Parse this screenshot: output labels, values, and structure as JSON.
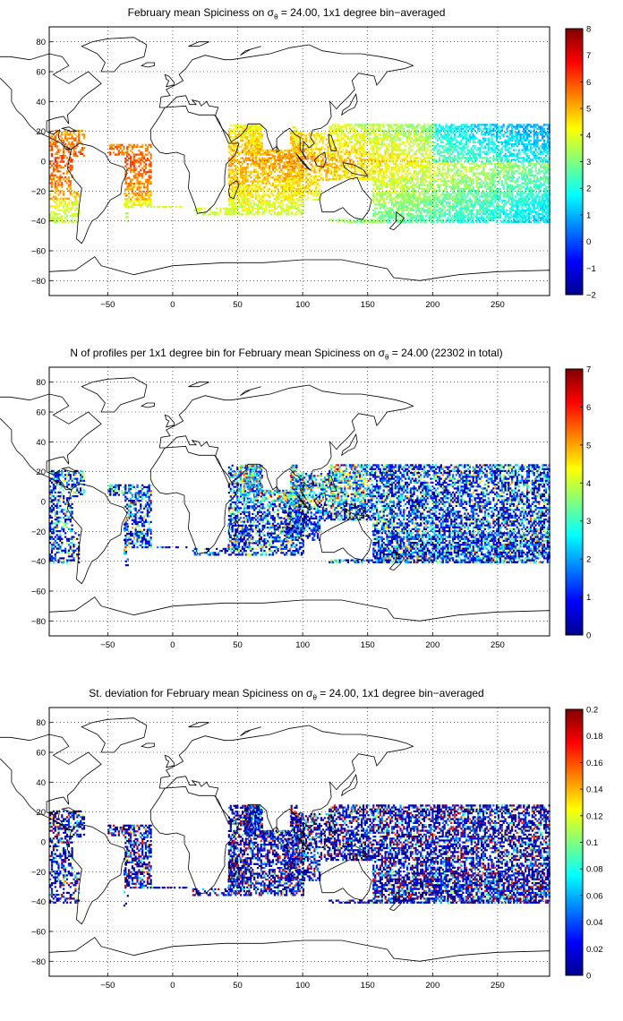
{
  "panels": [
    {
      "title_prefix": "February mean Spiciness on σ",
      "title_sub": "θ",
      "title_suffix": " = 24.00, 1x1 degree bin−averaged",
      "xticks": [
        "−50",
        "0",
        "50",
        "100",
        "150",
        "200",
        "250"
      ],
      "yticks": [
        "80",
        "60",
        "40",
        "20",
        "0",
        "−20",
        "−40",
        "−60",
        "−80"
      ],
      "colorbar_ticks": [
        "8",
        "7",
        "6",
        "5",
        "4",
        "3",
        "2",
        "1",
        "0",
        "−1",
        "−2"
      ]
    },
    {
      "title_prefix": "N of profiles per 1x1 degree bin for February mean Spiciness on σ",
      "title_sub": "θ",
      "title_suffix": " = 24.00 (22302 in total)",
      "xticks": [
        "−50",
        "0",
        "50",
        "100",
        "150",
        "200",
        "250"
      ],
      "yticks": [
        "80",
        "60",
        "40",
        "20",
        "0",
        "−20",
        "−40",
        "−60",
        "−80"
      ],
      "colorbar_ticks": [
        "7",
        "6",
        "5",
        "4",
        "3",
        "2",
        "1",
        "0"
      ]
    },
    {
      "title_prefix": "St. deviation for February mean Spiciness on σ",
      "title_sub": "θ",
      "title_suffix": " = 24.00, 1x1 degree bin−averaged",
      "xticks": [
        "−50",
        "0",
        "50",
        "100",
        "150",
        "200",
        "250"
      ],
      "yticks": [
        "80",
        "60",
        "40",
        "20",
        "0",
        "−20",
        "−40",
        "−60",
        "−80"
      ],
      "colorbar_ticks": [
        "0.2",
        "0.18",
        "0.16",
        "0.14",
        "0.12",
        "0.1",
        "0.08",
        "0.06",
        "0.04",
        "0.02",
        "0"
      ]
    }
  ],
  "colormap": "jet",
  "colors": {
    "jet": [
      "#00008f",
      "#0000ff",
      "#00ffff",
      "#ffff00",
      "#ff0000",
      "#800000"
    ]
  }
}
